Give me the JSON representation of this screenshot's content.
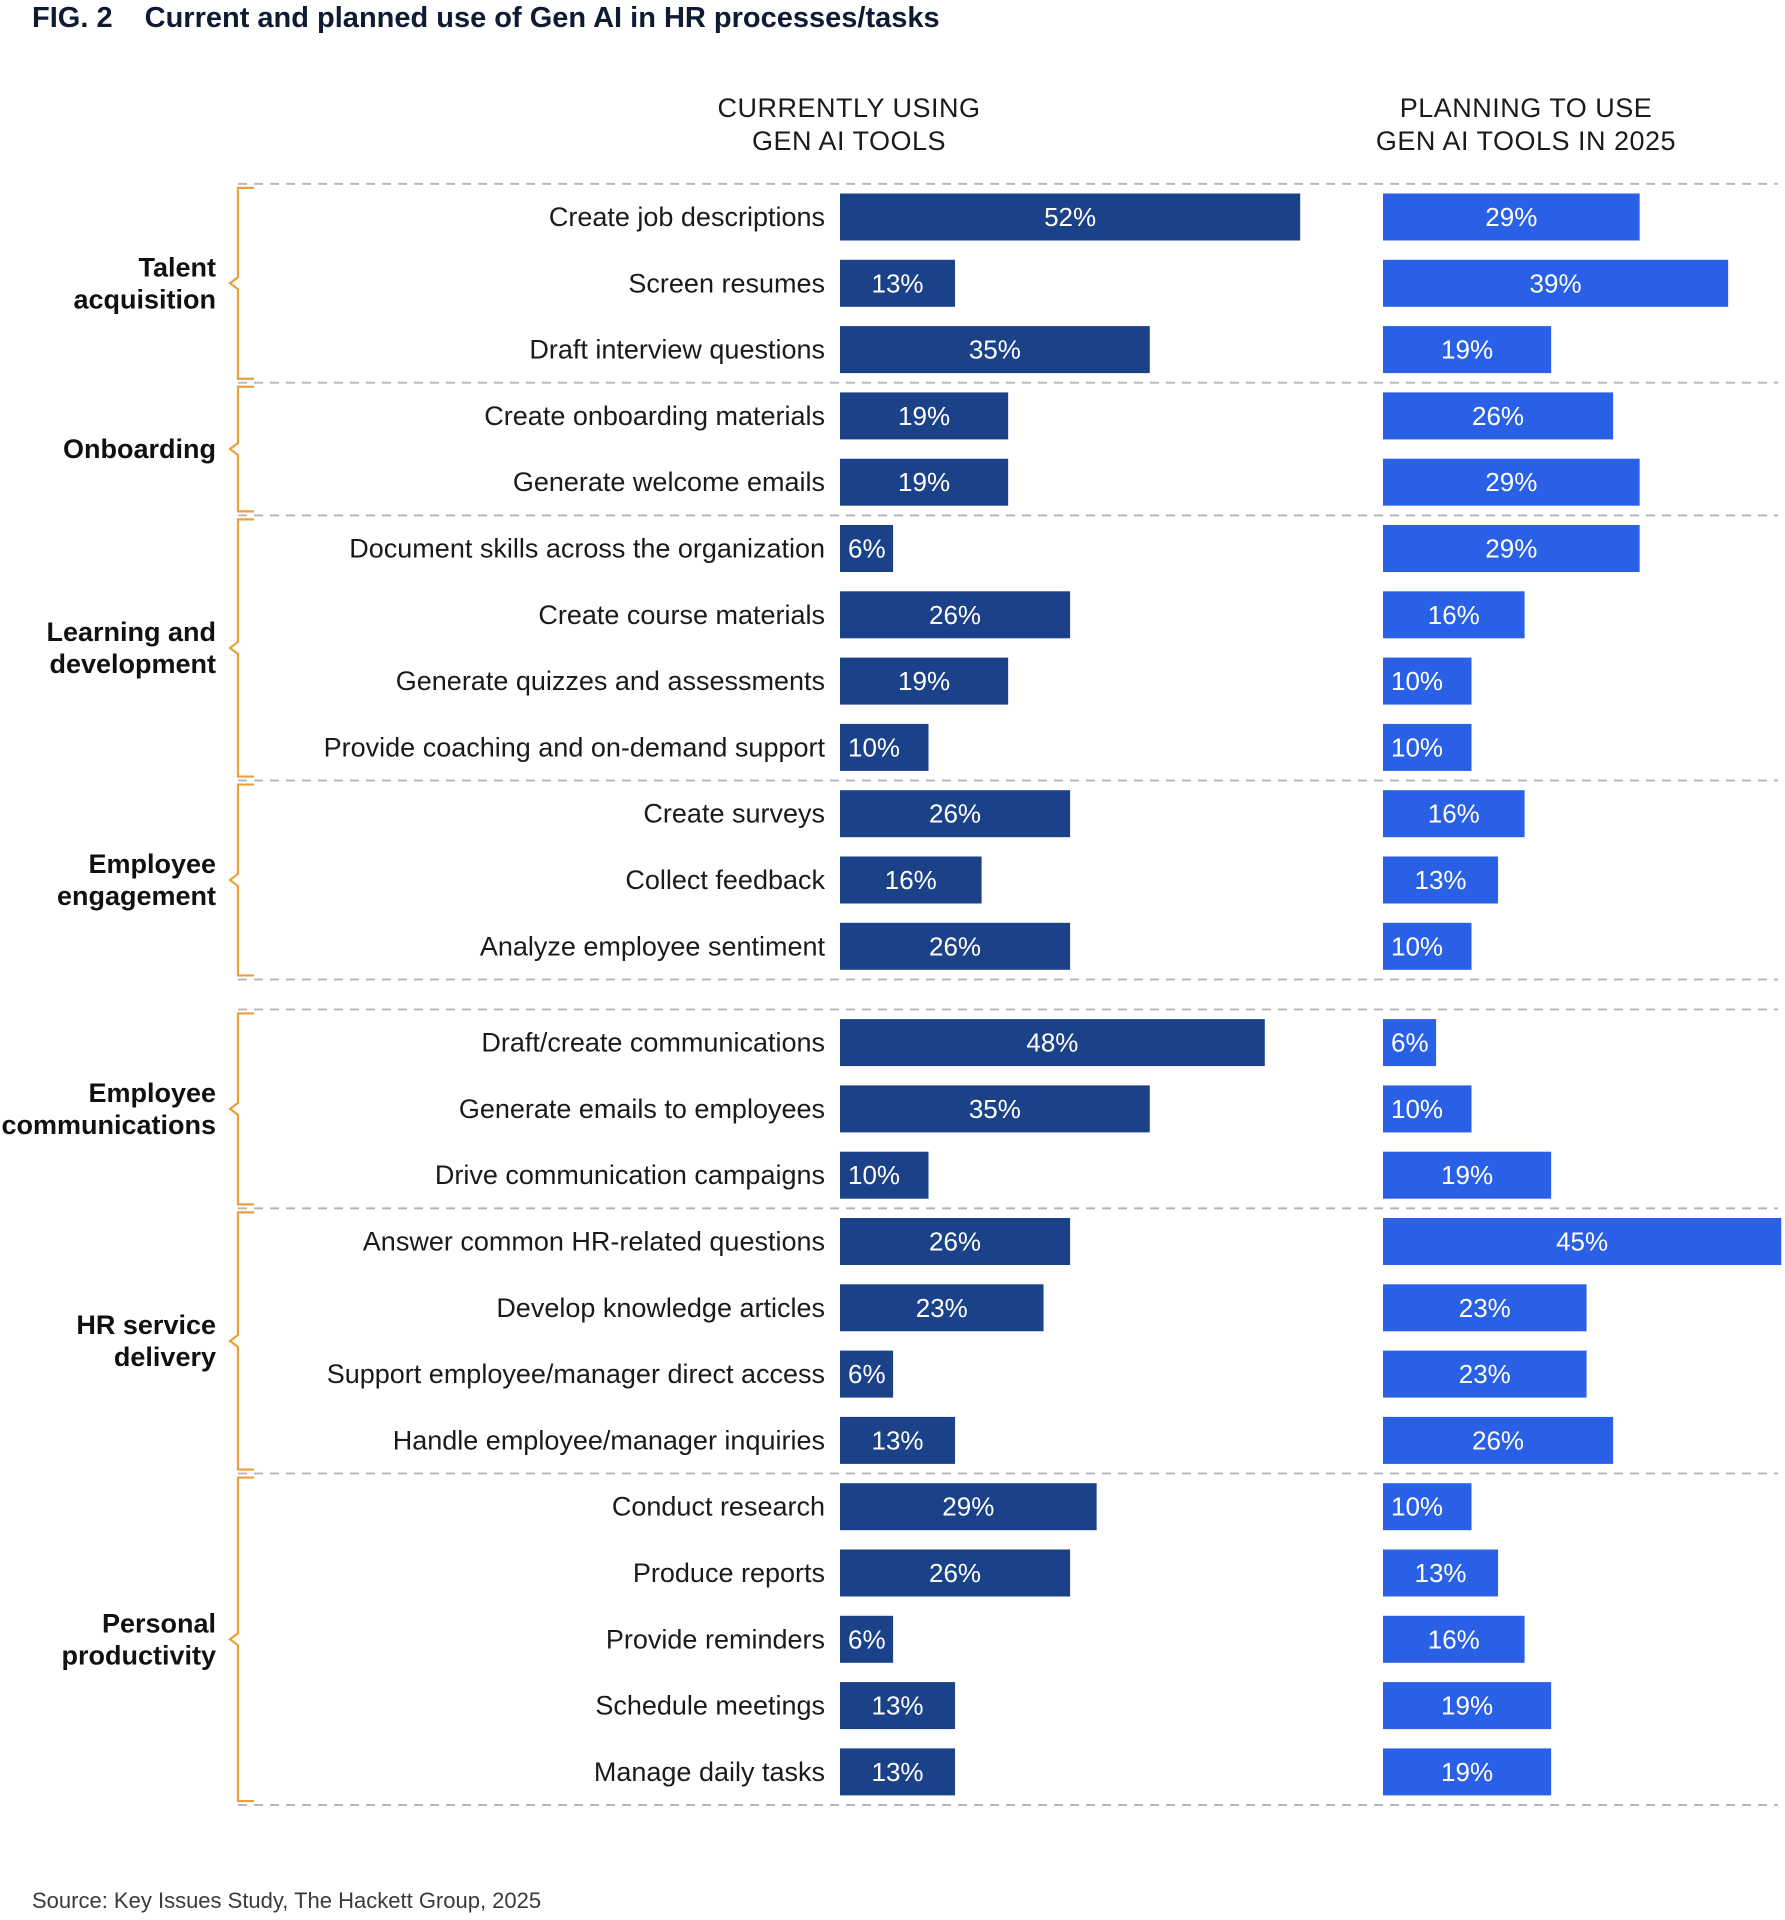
{
  "figure": {
    "label": "FIG. 2",
    "title": "Current and planned use of Gen AI in HR processes/tasks",
    "source": "Source: Key Issues Study, The Hackett Group, 2025"
  },
  "columns": {
    "current": [
      "CURRENTLY USING",
      "GEN AI TOOLS"
    ],
    "planned": [
      "PLANNING TO USE",
      "GEN AI TOOLS IN 2025"
    ]
  },
  "colors": {
    "current": "#1b4289",
    "planned": "#2a60e6",
    "bracket": "#e8a13a",
    "divider": "#b8b8b8"
  },
  "chart_data": {
    "type": "bar",
    "orientation": "horizontal",
    "unit": "%",
    "series": [
      {
        "name": "CURRENTLY USING GEN AI TOOLS",
        "key": "current"
      },
      {
        "name": "PLANNING TO USE GEN AI TOOLS IN 2025",
        "key": "planned"
      }
    ],
    "groups": [
      {
        "name_lines": [
          "Talent",
          "acquisition"
        ],
        "rows": [
          {
            "label": "Create job descriptions",
            "current": 52,
            "planned": 29
          },
          {
            "label": "Screen resumes",
            "current": 13,
            "planned": 39
          },
          {
            "label": "Draft interview questions",
            "current": 35,
            "planned": 19
          }
        ]
      },
      {
        "name_lines": [
          "Onboarding"
        ],
        "rows": [
          {
            "label": "Create onboarding materials",
            "current": 19,
            "planned": 26
          },
          {
            "label": "Generate welcome emails",
            "current": 19,
            "planned": 29
          }
        ]
      },
      {
        "name_lines": [
          "Learning and",
          "development"
        ],
        "rows": [
          {
            "label": "Document skills across the organization",
            "current": 6,
            "planned": 29
          },
          {
            "label": "Create course materials",
            "current": 26,
            "planned": 16
          },
          {
            "label": "Generate quizzes and assessments",
            "current": 19,
            "planned": 10
          },
          {
            "label": "Provide coaching and on-demand support",
            "current": 10,
            "planned": 10
          }
        ]
      },
      {
        "name_lines": [
          "Employee",
          "engagement"
        ],
        "rows": [
          {
            "label": "Create surveys",
            "current": 26,
            "planned": 16
          },
          {
            "label": "Collect feedback",
            "current": 16,
            "planned": 13
          },
          {
            "label": "Analyze employee sentiment",
            "current": 26,
            "planned": 10
          }
        ]
      },
      {
        "name_lines": [
          "Employee",
          "communications"
        ],
        "rows": [
          {
            "label": "Draft/create communications",
            "current": 48,
            "planned": 6
          },
          {
            "label": "Generate emails to employees",
            "current": 35,
            "planned": 10
          },
          {
            "label": "Drive communication campaigns",
            "current": 10,
            "planned": 19
          }
        ]
      },
      {
        "name_lines": [
          "HR service",
          "delivery"
        ],
        "rows": [
          {
            "label": "Answer common HR-related questions",
            "current": 26,
            "planned": 45
          },
          {
            "label": "Develop knowledge articles",
            "current": 23,
            "planned": 23
          },
          {
            "label": "Support employee/manager direct access",
            "current": 6,
            "planned": 23
          },
          {
            "label": "Handle employee/manager inquiries",
            "current": 13,
            "planned": 26
          }
        ]
      },
      {
        "name_lines": [
          "Personal",
          "productivity"
        ],
        "rows": [
          {
            "label": "Conduct research",
            "current": 29,
            "planned": 10
          },
          {
            "label": "Produce reports",
            "current": 26,
            "planned": 13
          },
          {
            "label": "Provide reminders",
            "current": 6,
            "planned": 16
          },
          {
            "label": "Schedule meetings",
            "current": 13,
            "planned": 19
          },
          {
            "label": "Manage daily tasks",
            "current": 13,
            "planned": 19
          }
        ]
      }
    ]
  }
}
